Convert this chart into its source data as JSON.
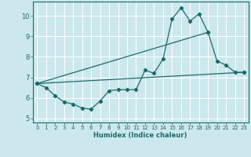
{
  "xlabel": "Humidex (Indice chaleur)",
  "bg_color": "#cce8ec",
  "grid_color": "#ffffff",
  "line_color": "#1a6b6b",
  "xlim": [
    -0.5,
    23.5
  ],
  "ylim": [
    4.8,
    10.7
  ],
  "yticks": [
    5,
    6,
    7,
    8,
    9,
    10
  ],
  "xticks": [
    0,
    1,
    2,
    3,
    4,
    5,
    6,
    7,
    8,
    9,
    10,
    11,
    12,
    13,
    14,
    15,
    16,
    17,
    18,
    19,
    20,
    21,
    22,
    23
  ],
  "series1_x": [
    0,
    1,
    2,
    3,
    4,
    5,
    6,
    7,
    8,
    9,
    10,
    11,
    12,
    13,
    14,
    15,
    16,
    17,
    18,
    19,
    20,
    21,
    22,
    23
  ],
  "series1_y": [
    6.7,
    6.5,
    6.1,
    5.8,
    5.7,
    5.5,
    5.45,
    5.85,
    6.35,
    6.4,
    6.4,
    6.4,
    7.35,
    7.2,
    7.9,
    9.85,
    10.4,
    9.75,
    10.1,
    9.2,
    7.8,
    7.6,
    7.25,
    7.25
  ],
  "series2_x": [
    0,
    23
  ],
  "series2_y": [
    6.7,
    7.25
  ],
  "series3_x": [
    0,
    19
  ],
  "series3_y": [
    6.7,
    9.2
  ]
}
